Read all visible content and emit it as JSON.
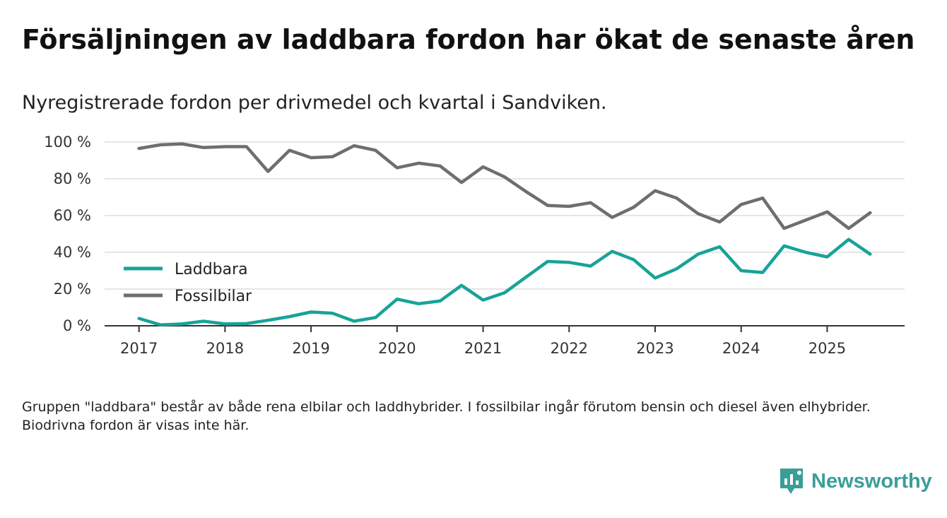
{
  "header": {
    "title": "Försäljningen av laddbara fordon har ökat de senaste åren",
    "subtitle": "Nyregistrerade fordon per drivmedel och kvartal i Sandviken."
  },
  "footnote": "Gruppen \"laddbara\" består av både rena elbilar och laddhybrider. I fossilbilar ingår förutom bensin och diesel även elhybrider. Biodrivna fordon är visas inte här.",
  "brand": {
    "name": "Newsworthy"
  },
  "colors": {
    "laddbara": "#17a398",
    "fossil": "#6e6e70",
    "grid": "#dddddd",
    "axis": "#333333"
  },
  "chart_data": {
    "type": "line",
    "title": "Nyregistrerade fordon per drivmedel och kvartal i Sandviken.",
    "xlabel": "",
    "ylabel": "",
    "ylim": [
      0,
      100
    ],
    "y_ticks": [
      0,
      20,
      40,
      60,
      80,
      100
    ],
    "y_tick_labels": [
      "0 %",
      "20 %",
      "40 %",
      "60 %",
      "80 %",
      "100 %"
    ],
    "x_ticks": [
      2017,
      2018,
      2019,
      2020,
      2021,
      2022,
      2023,
      2024,
      2025
    ],
    "x_tick_labels": [
      "2017",
      "2018",
      "2019",
      "2020",
      "2021",
      "2022",
      "2023",
      "2024",
      "2025"
    ],
    "xlim": [
      2016.6,
      2025.9
    ],
    "grid": true,
    "legend_position": "left",
    "x": [
      2017.0,
      2017.25,
      2017.5,
      2017.75,
      2018.0,
      2018.25,
      2018.5,
      2018.75,
      2019.0,
      2019.25,
      2019.5,
      2019.75,
      2020.0,
      2020.25,
      2020.5,
      2020.75,
      2021.0,
      2021.25,
      2021.5,
      2021.75,
      2022.0,
      2022.25,
      2022.5,
      2022.75,
      2023.0,
      2023.25,
      2023.5,
      2023.75,
      2024.0,
      2024.25,
      2024.5,
      2024.75,
      2025.0,
      2025.25,
      2025.5
    ],
    "series": [
      {
        "name": "Laddbara",
        "color_key": "laddbara",
        "values": [
          4,
          0.5,
          1,
          2.5,
          1,
          1.2,
          3,
          5,
          7.5,
          6.8,
          2.5,
          4.5,
          14.5,
          12,
          13.5,
          22,
          14,
          18,
          26.5,
          35,
          34.5,
          32.5,
          40.5,
          36,
          26,
          31,
          39,
          43,
          30,
          29,
          43.5,
          40,
          37.5,
          47,
          39
        ]
      },
      {
        "name": "Fossilbilar",
        "color_key": "fossil",
        "values": [
          96.5,
          98.5,
          99,
          97,
          97.5,
          97.5,
          84,
          95.5,
          91.5,
          92,
          98,
          95.5,
          86,
          88.5,
          87,
          78,
          86.5,
          81,
          73,
          65.5,
          65,
          67,
          59,
          64.5,
          73.5,
          69.5,
          61,
          56.5,
          66,
          69.5,
          53,
          57.5,
          62,
          53,
          61.5
        ]
      }
    ]
  }
}
